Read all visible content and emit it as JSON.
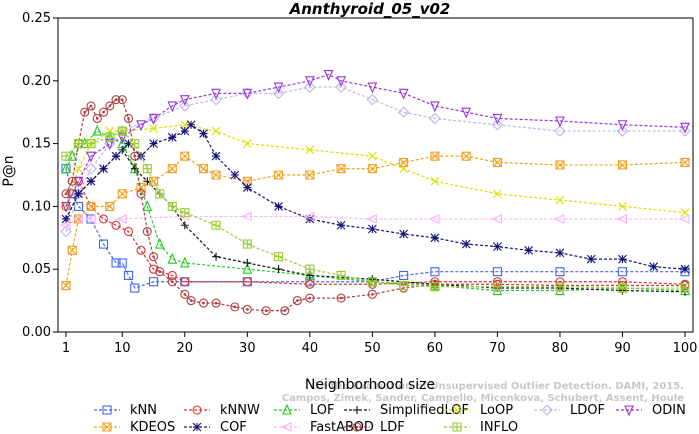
{
  "chart_data": {
    "type": "line",
    "title": "Annthyroid_05_v02",
    "xlabel": "Neighborhood size",
    "ylabel": "P@n",
    "xlim": [
      1,
      100
    ],
    "ylim": [
      0,
      0.25
    ],
    "xticks": [
      "1",
      "10",
      "20",
      "30",
      "40",
      "50",
      "60",
      "70",
      "80",
      "90",
      "100"
    ],
    "yticks": [
      "0.00",
      "0.05",
      "0.10",
      "0.15",
      "0.20",
      "0.25"
    ],
    "legend_position": "bottom",
    "watermark": [
      "Campos, Zimek, Sander, Campello, Micenkova, Schubert, Assent, Houle",
      "On the Evaluation of Unsupervised Outlier Detection. DAMI, 2015."
    ],
    "series": [
      {
        "name": "kNN",
        "color": "#4466ee",
        "marker": "square",
        "points": [
          [
            1,
            0.13
          ],
          [
            2,
            0.11
          ],
          [
            3,
            0.1
          ],
          [
            5,
            0.09
          ],
          [
            7,
            0.07
          ],
          [
            9,
            0.055
          ],
          [
            10,
            0.055
          ],
          [
            11,
            0.045
          ],
          [
            12,
            0.035
          ],
          [
            15,
            0.04
          ],
          [
            20,
            0.04
          ],
          [
            30,
            0.04
          ],
          [
            40,
            0.04
          ],
          [
            50,
            0.04
          ],
          [
            55,
            0.045
          ],
          [
            60,
            0.048
          ],
          [
            70,
            0.048
          ],
          [
            80,
            0.048
          ],
          [
            90,
            0.048
          ],
          [
            100,
            0.048
          ]
        ]
      },
      {
        "name": "kNNW",
        "color": "#e03030",
        "marker": "circle",
        "points": [
          [
            1,
            0.1
          ],
          [
            2,
            0.11
          ],
          [
            3,
            0.12
          ],
          [
            5,
            0.1
          ],
          [
            7,
            0.09
          ],
          [
            9,
            0.085
          ],
          [
            11,
            0.08
          ],
          [
            13,
            0.065
          ],
          [
            15,
            0.05
          ],
          [
            18,
            0.045
          ],
          [
            20,
            0.04
          ],
          [
            30,
            0.04
          ],
          [
            40,
            0.038
          ],
          [
            50,
            0.038
          ],
          [
            60,
            0.04
          ],
          [
            70,
            0.04
          ],
          [
            80,
            0.04
          ],
          [
            90,
            0.04
          ],
          [
            100,
            0.038
          ]
        ]
      },
      {
        "name": "LOF",
        "color": "#22cc22",
        "marker": "triangle-up",
        "points": [
          [
            1,
            0.13
          ],
          [
            2,
            0.14
          ],
          [
            4,
            0.15
          ],
          [
            6,
            0.16
          ],
          [
            8,
            0.155
          ],
          [
            10,
            0.15
          ],
          [
            12,
            0.13
          ],
          [
            14,
            0.1
          ],
          [
            16,
            0.07
          ],
          [
            18,
            0.058
          ],
          [
            20,
            0.055
          ],
          [
            30,
            0.05
          ],
          [
            40,
            0.045
          ],
          [
            50,
            0.04
          ],
          [
            60,
            0.037
          ],
          [
            70,
            0.033
          ],
          [
            80,
            0.033
          ],
          [
            90,
            0.035
          ],
          [
            100,
            0.033
          ]
        ]
      },
      {
        "name": "SimplifiedLOF",
        "color": "#111111",
        "marker": "plus",
        "points": [
          [
            1,
            0.09
          ],
          [
            3,
            0.11
          ],
          [
            5,
            0.12
          ],
          [
            7,
            0.13
          ],
          [
            9,
            0.14
          ],
          [
            10,
            0.145
          ],
          [
            12,
            0.13
          ],
          [
            14,
            0.12
          ],
          [
            16,
            0.11
          ],
          [
            18,
            0.1
          ],
          [
            20,
            0.085
          ],
          [
            25,
            0.06
          ],
          [
            30,
            0.055
          ],
          [
            35,
            0.05
          ],
          [
            40,
            0.045
          ],
          [
            50,
            0.042
          ],
          [
            60,
            0.038
          ],
          [
            70,
            0.035
          ],
          [
            80,
            0.035
          ],
          [
            90,
            0.033
          ],
          [
            100,
            0.032
          ]
        ]
      },
      {
        "name": "LoOP",
        "color": "#dddd00",
        "marker": "x",
        "points": [
          [
            1,
            0.1
          ],
          [
            3,
            0.13
          ],
          [
            5,
            0.15
          ],
          [
            8,
            0.16
          ],
          [
            10,
            0.16
          ],
          [
            15,
            0.162
          ],
          [
            20,
            0.165
          ],
          [
            25,
            0.16
          ],
          [
            30,
            0.15
          ],
          [
            40,
            0.145
          ],
          [
            50,
            0.14
          ],
          [
            55,
            0.13
          ],
          [
            60,
            0.12
          ],
          [
            70,
            0.11
          ],
          [
            80,
            0.105
          ],
          [
            90,
            0.1
          ],
          [
            100,
            0.095
          ]
        ]
      },
      {
        "name": "LDOF",
        "color": "#b8b8ee",
        "marker": "diamond",
        "points": [
          [
            1,
            0.08
          ],
          [
            3,
            0.11
          ],
          [
            5,
            0.13
          ],
          [
            8,
            0.15
          ],
          [
            10,
            0.16
          ],
          [
            15,
            0.17
          ],
          [
            20,
            0.18
          ],
          [
            25,
            0.185
          ],
          [
            30,
            0.19
          ],
          [
            35,
            0.19
          ],
          [
            40,
            0.195
          ],
          [
            45,
            0.195
          ],
          [
            50,
            0.185
          ],
          [
            55,
            0.175
          ],
          [
            60,
            0.17
          ],
          [
            70,
            0.165
          ],
          [
            80,
            0.16
          ],
          [
            90,
            0.16
          ],
          [
            100,
            0.16
          ]
        ]
      },
      {
        "name": "ODIN",
        "color": "#9933dd",
        "marker": "triangle-down",
        "points": [
          [
            1,
            0.1
          ],
          [
            3,
            0.12
          ],
          [
            5,
            0.14
          ],
          [
            8,
            0.15
          ],
          [
            10,
            0.155
          ],
          [
            13,
            0.165
          ],
          [
            15,
            0.17
          ],
          [
            18,
            0.18
          ],
          [
            20,
            0.185
          ],
          [
            25,
            0.19
          ],
          [
            30,
            0.19
          ],
          [
            35,
            0.195
          ],
          [
            40,
            0.2
          ],
          [
            43,
            0.205
          ],
          [
            45,
            0.2
          ],
          [
            50,
            0.195
          ],
          [
            55,
            0.19
          ],
          [
            60,
            0.18
          ],
          [
            65,
            0.175
          ],
          [
            70,
            0.17
          ],
          [
            80,
            0.168
          ],
          [
            90,
            0.165
          ],
          [
            100,
            0.163
          ]
        ]
      },
      {
        "name": "KDEOS",
        "color": "#f0a020",
        "marker": "square-x",
        "points": [
          [
            1,
            0.037
          ],
          [
            2,
            0.065
          ],
          [
            3,
            0.09
          ],
          [
            5,
            0.1
          ],
          [
            8,
            0.1
          ],
          [
            10,
            0.11
          ],
          [
            13,
            0.115
          ],
          [
            15,
            0.12
          ],
          [
            18,
            0.13
          ],
          [
            20,
            0.14
          ],
          [
            23,
            0.13
          ],
          [
            25,
            0.125
          ],
          [
            30,
            0.12
          ],
          [
            35,
            0.125
          ],
          [
            40,
            0.125
          ],
          [
            45,
            0.13
          ],
          [
            50,
            0.13
          ],
          [
            55,
            0.135
          ],
          [
            60,
            0.14
          ],
          [
            65,
            0.14
          ],
          [
            70,
            0.135
          ],
          [
            80,
            0.133
          ],
          [
            90,
            0.133
          ],
          [
            100,
            0.135
          ]
        ]
      },
      {
        "name": "COF",
        "color": "#111177",
        "marker": "star",
        "points": [
          [
            1,
            0.09
          ],
          [
            3,
            0.11
          ],
          [
            5,
            0.12
          ],
          [
            7,
            0.13
          ],
          [
            9,
            0.14
          ],
          [
            11,
            0.15
          ],
          [
            13,
            0.14
          ],
          [
            15,
            0.15
          ],
          [
            18,
            0.155
          ],
          [
            20,
            0.16
          ],
          [
            21,
            0.165
          ],
          [
            23,
            0.158
          ],
          [
            25,
            0.14
          ],
          [
            28,
            0.125
          ],
          [
            30,
            0.115
          ],
          [
            35,
            0.1
          ],
          [
            40,
            0.09
          ],
          [
            45,
            0.085
          ],
          [
            50,
            0.082
          ],
          [
            55,
            0.078
          ],
          [
            60,
            0.075
          ],
          [
            65,
            0.07
          ],
          [
            70,
            0.068
          ],
          [
            75,
            0.065
          ],
          [
            80,
            0.063
          ],
          [
            85,
            0.058
          ],
          [
            90,
            0.058
          ],
          [
            95,
            0.052
          ],
          [
            100,
            0.05
          ]
        ]
      },
      {
        "name": "FastABOD",
        "color": "#ffb0ff",
        "marker": "triangle-left",
        "points": [
          [
            1,
            0.085
          ],
          [
            3,
            0.09
          ],
          [
            5,
            0.09
          ],
          [
            10,
            0.09
          ],
          [
            20,
            0.092
          ],
          [
            30,
            0.092
          ],
          [
            40,
            0.092
          ],
          [
            50,
            0.09
          ],
          [
            60,
            0.09
          ],
          [
            70,
            0.09
          ],
          [
            80,
            0.09
          ],
          [
            90,
            0.09
          ],
          [
            100,
            0.09
          ]
        ]
      },
      {
        "name": "LDF",
        "color": "#b04040",
        "marker": "circle-dot",
        "points": [
          [
            1,
            0.11
          ],
          [
            2,
            0.12
          ],
          [
            3,
            0.15
          ],
          [
            4,
            0.175
          ],
          [
            5,
            0.18
          ],
          [
            6,
            0.17
          ],
          [
            7,
            0.175
          ],
          [
            8,
            0.18
          ],
          [
            9,
            0.185
          ],
          [
            10,
            0.185
          ],
          [
            11,
            0.17
          ],
          [
            12,
            0.14
          ],
          [
            13,
            0.11
          ],
          [
            14,
            0.08
          ],
          [
            15,
            0.06
          ],
          [
            16,
            0.048
          ],
          [
            18,
            0.04
          ],
          [
            20,
            0.03
          ],
          [
            21,
            0.025
          ],
          [
            23,
            0.023
          ],
          [
            25,
            0.023
          ],
          [
            28,
            0.02
          ],
          [
            30,
            0.018
          ],
          [
            33,
            0.017
          ],
          [
            36,
            0.017
          ],
          [
            38,
            0.025
          ],
          [
            40,
            0.027
          ],
          [
            45,
            0.027
          ],
          [
            50,
            0.03
          ],
          [
            55,
            0.035
          ],
          [
            60,
            0.038
          ],
          [
            70,
            0.038
          ],
          [
            80,
            0.037
          ],
          [
            90,
            0.037
          ],
          [
            100,
            0.037
          ]
        ]
      },
      {
        "name": "INFLO",
        "color": "#99cc33",
        "marker": "square-cross",
        "points": [
          [
            1,
            0.14
          ],
          [
            3,
            0.15
          ],
          [
            5,
            0.15
          ],
          [
            8,
            0.155
          ],
          [
            10,
            0.16
          ],
          [
            12,
            0.15
          ],
          [
            14,
            0.13
          ],
          [
            16,
            0.11
          ],
          [
            18,
            0.1
          ],
          [
            20,
            0.095
          ],
          [
            25,
            0.085
          ],
          [
            30,
            0.07
          ],
          [
            35,
            0.06
          ],
          [
            40,
            0.05
          ],
          [
            45,
            0.045
          ],
          [
            50,
            0.04
          ],
          [
            55,
            0.037
          ],
          [
            60,
            0.036
          ],
          [
            70,
            0.036
          ],
          [
            80,
            0.036
          ],
          [
            90,
            0.035
          ],
          [
            100,
            0.035
          ]
        ]
      }
    ]
  }
}
